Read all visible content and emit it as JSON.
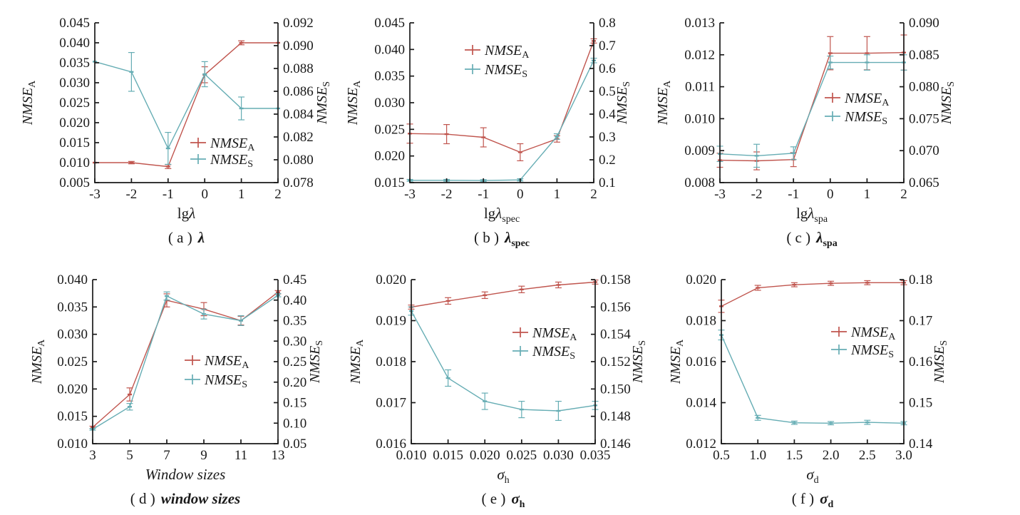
{
  "figure": {
    "background": "#ffffff",
    "axis_color": "#1a1a1a",
    "text_color": "#1a1a1a",
    "series_colors": {
      "nmse_a": "#c0554e",
      "nmse_s": "#66adb4"
    }
  },
  "chart_data": [
    {
      "id": "a",
      "type": "line",
      "caption": {
        "prefix": "( a )",
        "symbol": "λ",
        "sub": ""
      },
      "xlabel": {
        "prefix": "lg",
        "symbol": "λ",
        "sub": ""
      },
      "x": [
        -3,
        -2,
        -1,
        0,
        1,
        2
      ],
      "x_ticks": [
        "-3",
        "-2",
        "-1",
        "0",
        "1",
        "2"
      ],
      "x_range": [
        -3,
        2
      ],
      "left_axis": {
        "title": "NMSE",
        "title_sub": "A",
        "range": [
          0.005,
          0.045
        ],
        "ticks": [
          "0.005",
          "0.010",
          "0.015",
          "0.020",
          "0.025",
          "0.030",
          "0.035",
          "0.040",
          "0.045"
        ]
      },
      "right_axis": {
        "title": "NMSE",
        "title_sub": "S",
        "range": [
          0.078,
          0.092
        ],
        "ticks": [
          "0.078",
          "0.080",
          "0.082",
          "0.084",
          "0.086",
          "0.088",
          "0.090",
          "0.092"
        ]
      },
      "legend": [
        {
          "label": "NMSE",
          "sub": "A"
        },
        {
          "label": "NMSE",
          "sub": "S"
        }
      ],
      "series": [
        {
          "name": "NMSE_A",
          "axis": "left",
          "color": "#c0554e",
          "values": [
            0.01,
            0.01,
            0.009,
            0.032,
            0.04,
            0.04
          ],
          "errors": [
            0,
            0.0003,
            0.0005,
            0.002,
            0.0005,
            0
          ]
        },
        {
          "name": "NMSE_S",
          "axis": "right",
          "color": "#66adb4",
          "values": [
            0.0886,
            0.0877,
            0.081,
            0.0875,
            0.0845,
            0.0845
          ],
          "errors": [
            0,
            0.0017,
            0.0014,
            0.0011,
            0.001,
            0
          ]
        }
      ]
    },
    {
      "id": "b",
      "type": "line",
      "caption": {
        "prefix": "( b )",
        "symbol": "λ",
        "sub": "spec"
      },
      "xlabel": {
        "prefix": "lg",
        "symbol": "λ",
        "sub": "spec"
      },
      "x": [
        -3,
        -2,
        -1,
        0,
        1,
        2
      ],
      "x_ticks": [
        "-3",
        "-2",
        "-1",
        "0",
        "1",
        "2"
      ],
      "x_range": [
        -3,
        2
      ],
      "left_axis": {
        "title": "NMSE",
        "title_sub": "A",
        "range": [
          0.015,
          0.045
        ],
        "ticks": [
          "0.015",
          "0.020",
          "0.025",
          "0.030",
          "0.035",
          "0.040",
          "0.045"
        ]
      },
      "right_axis": {
        "title": "NMSE",
        "title_sub": "S",
        "range": [
          0.1,
          0.8
        ],
        "ticks": [
          "0.1",
          "0.2",
          "0.3",
          "0.4",
          "0.5",
          "0.6",
          "0.7",
          "0.8"
        ]
      },
      "legend": [
        {
          "label": "NMSE",
          "sub": "A"
        },
        {
          "label": "NMSE",
          "sub": "S"
        }
      ],
      "series": [
        {
          "name": "NMSE_A",
          "axis": "left",
          "color": "#c0554e",
          "values": [
            0.0242,
            0.0241,
            0.0235,
            0.0207,
            0.0232,
            0.0416
          ],
          "errors": [
            0.0018,
            0.0018,
            0.0018,
            0.0016,
            0.0006,
            0.0004
          ]
        },
        {
          "name": "NMSE_S",
          "axis": "right",
          "color": "#66adb4",
          "values": [
            0.11,
            0.11,
            0.109,
            0.112,
            0.302,
            0.635
          ],
          "errors": [
            0.004,
            0.004,
            0.004,
            0.005,
            0.012,
            0.01
          ]
        }
      ]
    },
    {
      "id": "c",
      "type": "line",
      "caption": {
        "prefix": "( c )",
        "symbol": "λ",
        "sub": "spa"
      },
      "xlabel": {
        "prefix": "lg",
        "symbol": "λ",
        "sub": "spa"
      },
      "x": [
        -3,
        -2,
        -1,
        0,
        1,
        2
      ],
      "x_ticks": [
        "-3",
        "-2",
        "-1",
        "0",
        "1",
        "2"
      ],
      "x_range": [
        -3,
        2
      ],
      "left_axis": {
        "title": "NMSE",
        "title_sub": "A",
        "range": [
          0.008,
          0.013
        ],
        "ticks": [
          "0.008",
          "0.009",
          "0.010",
          "0.011",
          "0.012",
          "0.013"
        ]
      },
      "right_axis": {
        "title": "NMSE",
        "title_sub": "S",
        "range": [
          0.065,
          0.09
        ],
        "ticks": [
          "0.065",
          "0.070",
          "0.075",
          "0.080",
          "0.085",
          "0.090"
        ]
      },
      "legend": [
        {
          "label": "NMSE",
          "sub": "A"
        },
        {
          "label": "NMSE",
          "sub": "S"
        }
      ],
      "series": [
        {
          "name": "NMSE_A",
          "axis": "left",
          "color": "#c0554e",
          "values": [
            0.0087,
            0.00868,
            0.00872,
            0.01205,
            0.01205,
            0.01207
          ],
          "errors": [
            0.00022,
            0.00028,
            0.00022,
            0.00052,
            0.00052,
            0.00055
          ]
        },
        {
          "name": "NMSE_S",
          "axis": "right",
          "color": "#66adb4",
          "values": [
            0.0695,
            0.0692,
            0.0696,
            0.0838,
            0.0838,
            0.0838
          ],
          "errors": [
            0.0012,
            0.0018,
            0.001,
            0.001,
            0.0012,
            0.0012
          ]
        }
      ]
    },
    {
      "id": "d",
      "type": "line",
      "caption": {
        "prefix": "( d )",
        "symbol": "window sizes",
        "sub": ""
      },
      "xlabel": {
        "prefix": "",
        "symbol": "Window sizes",
        "sub": ""
      },
      "x": [
        3,
        5,
        7,
        9,
        11,
        13
      ],
      "x_ticks": [
        "3",
        "5",
        "7",
        "9",
        "11",
        "13"
      ],
      "x_range": [
        3,
        13
      ],
      "left_axis": {
        "title": "NMSE",
        "title_sub": "A",
        "range": [
          0.01,
          0.04
        ],
        "ticks": [
          "0.010",
          "0.015",
          "0.020",
          "0.025",
          "0.030",
          "0.035",
          "0.040"
        ]
      },
      "right_axis": {
        "title": "NMSE",
        "title_sub": "S",
        "range": [
          0.05,
          0.45
        ],
        "ticks": [
          "0.05",
          "0.10",
          "0.15",
          "0.20",
          "0.25",
          "0.30",
          "0.35",
          "0.40",
          "0.45"
        ]
      },
      "legend": [
        {
          "label": "NMSE",
          "sub": "A"
        },
        {
          "label": "NMSE",
          "sub": "S"
        }
      ],
      "series": [
        {
          "name": "NMSE_A",
          "axis": "left",
          "color": "#c0554e",
          "values": [
            0.013,
            0.019,
            0.0362,
            0.0346,
            0.0325,
            0.0377
          ],
          "errors": [
            0.0002,
            0.0012,
            0.0012,
            0.0012,
            0.0008,
            0.0003
          ]
        },
        {
          "name": "NMSE_S",
          "axis": "right",
          "color": "#66adb4",
          "values": [
            0.085,
            0.14,
            0.41,
            0.366,
            0.35,
            0.412
          ],
          "errors": [
            0.002,
            0.008,
            0.01,
            0.012,
            0.012,
            0.004
          ]
        }
      ]
    },
    {
      "id": "e",
      "type": "line",
      "caption": {
        "prefix": "( e )",
        "symbol": "σ",
        "sub": "h"
      },
      "xlabel": {
        "prefix": "",
        "symbol": "σ",
        "sub": "h"
      },
      "x": [
        0.01,
        0.015,
        0.02,
        0.025,
        0.03,
        0.035
      ],
      "x_ticks": [
        "0.010",
        "0.015",
        "0.020",
        "0.025",
        "0.030",
        "0.035"
      ],
      "x_range": [
        0.01,
        0.035
      ],
      "left_axis": {
        "title": "NMSE",
        "title_sub": "A",
        "range": [
          0.016,
          0.02
        ],
        "ticks": [
          "0.016",
          "0.017",
          "0.018",
          "0.019",
          "0.020"
        ]
      },
      "right_axis": {
        "title": "NMSE",
        "title_sub": "S",
        "range": [
          0.146,
          0.158
        ],
        "ticks": [
          "0.146",
          "0.148",
          "0.150",
          "0.152",
          "0.154",
          "0.156",
          "0.158"
        ]
      },
      "legend": [
        {
          "label": "NMSE",
          "sub": "A"
        },
        {
          "label": "NMSE",
          "sub": "S"
        }
      ],
      "series": [
        {
          "name": "NMSE_A",
          "axis": "left",
          "color": "#c0554e",
          "values": [
            0.01933,
            0.01948,
            0.01962,
            0.01976,
            0.01987,
            0.01994
          ],
          "errors": [
            5e-05,
            8e-05,
            8e-05,
            8e-05,
            7e-05,
            5e-05
          ]
        },
        {
          "name": "NMSE_S",
          "axis": "right",
          "color": "#66adb4",
          "values": [
            0.1557,
            0.1508,
            0.1491,
            0.1485,
            0.1484,
            0.1488
          ],
          "errors": [
            0.0003,
            0.0006,
            0.0006,
            0.0006,
            0.0007,
            0.0003
          ]
        }
      ]
    },
    {
      "id": "f",
      "type": "line",
      "caption": {
        "prefix": "( f )",
        "symbol": "σ",
        "sub": "d"
      },
      "xlabel": {
        "prefix": "",
        "symbol": "σ",
        "sub": "d"
      },
      "x": [
        0.5,
        1.0,
        1.5,
        2.0,
        2.5,
        3.0
      ],
      "x_ticks": [
        "0.5",
        "1.0",
        "1.5",
        "2.0",
        "2.5",
        "3.0"
      ],
      "x_range": [
        0.5,
        3.0
      ],
      "left_axis": {
        "title": "NMSE",
        "title_sub": "A",
        "range": [
          0.012,
          0.02
        ],
        "ticks": [
          "0.012",
          "0.014",
          "0.016",
          "0.018",
          "0.020"
        ]
      },
      "right_axis": {
        "title": "NMSE",
        "title_sub": "S",
        "range": [
          0.14,
          0.18
        ],
        "ticks": [
          "0.14",
          "0.15",
          "0.16",
          "0.17",
          "0.18"
        ]
      },
      "legend": [
        {
          "label": "NMSE",
          "sub": "A"
        },
        {
          "label": "NMSE",
          "sub": "S"
        }
      ],
      "series": [
        {
          "name": "NMSE_A",
          "axis": "left",
          "color": "#c0554e",
          "values": [
            0.0187,
            0.0196,
            0.01975,
            0.01982,
            0.01985,
            0.01985
          ],
          "errors": [
            0.0003,
            0.00012,
            0.0001,
            0.0001,
            0.0001,
            0.0001
          ]
        },
        {
          "name": "NMSE_S",
          "axis": "right",
          "color": "#66adb4",
          "values": [
            0.1665,
            0.1463,
            0.1451,
            0.145,
            0.1452,
            0.145
          ],
          "errors": [
            0.0012,
            0.0006,
            0.0004,
            0.0004,
            0.0005,
            0.0004
          ]
        }
      ]
    }
  ]
}
